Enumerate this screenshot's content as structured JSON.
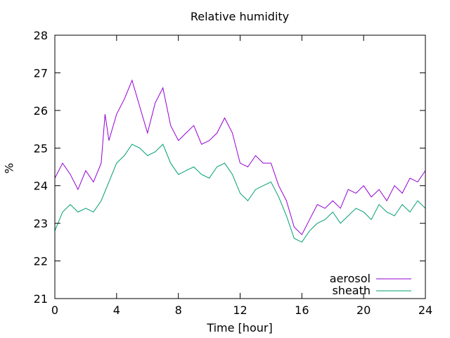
{
  "chart_data": {
    "type": "line",
    "title": "Relative humidity",
    "xlabel": "Time [hour]",
    "ylabel": "%",
    "xlim": [
      0,
      24
    ],
    "ylim": [
      21,
      28
    ],
    "xticks": [
      0,
      4,
      8,
      12,
      16,
      20,
      24
    ],
    "yticks": [
      21,
      22,
      23,
      24,
      25,
      26,
      27,
      28
    ],
    "grid": false,
    "legend_position": "bottom-right",
    "series": [
      {
        "name": "aerosol",
        "color": "#9400d3",
        "x": [
          0,
          0.5,
          1,
          1.5,
          2,
          2.5,
          3,
          3.25,
          3.5,
          4,
          4.5,
          5,
          5.5,
          6,
          6.5,
          7,
          7.5,
          8,
          8.5,
          9,
          9.5,
          10,
          10.5,
          11,
          11.5,
          12,
          12.5,
          13,
          13.5,
          14,
          14.5,
          15,
          15.5,
          16,
          16.5,
          17,
          17.5,
          18,
          18.5,
          19,
          19.5,
          20,
          20.5,
          21,
          21.5,
          22,
          22.5,
          23,
          23.5,
          24
        ],
        "y": [
          24.2,
          24.6,
          24.3,
          23.9,
          24.4,
          24.1,
          24.6,
          25.9,
          25.2,
          25.9,
          26.3,
          26.8,
          26.1,
          25.4,
          26.2,
          26.6,
          25.6,
          25.2,
          25.4,
          25.6,
          25.1,
          25.2,
          25.4,
          25.8,
          25.4,
          24.6,
          24.5,
          24.8,
          24.6,
          24.6,
          24.0,
          23.6,
          22.9,
          22.7,
          23.1,
          23.5,
          23.4,
          23.6,
          23.4,
          23.9,
          23.8,
          24.0,
          23.7,
          23.9,
          23.6,
          24.0,
          23.8,
          24.2,
          24.1,
          24.4
        ]
      },
      {
        "name": "sheath",
        "color": "#009e73",
        "x": [
          0,
          0.5,
          1,
          1.5,
          2,
          2.5,
          3,
          3.5,
          4,
          4.5,
          5,
          5.5,
          6,
          6.5,
          7,
          7.5,
          8,
          8.5,
          9,
          9.5,
          10,
          10.5,
          11,
          11.5,
          12,
          12.5,
          13,
          13.5,
          14,
          14.5,
          15,
          15.5,
          16,
          16.5,
          17,
          17.5,
          18,
          18.5,
          19,
          19.5,
          20,
          20.5,
          21,
          21.5,
          22,
          22.5,
          23,
          23.5,
          24
        ],
        "y": [
          22.8,
          23.3,
          23.5,
          23.3,
          23.4,
          23.3,
          23.6,
          24.1,
          24.6,
          24.8,
          25.1,
          25.0,
          24.8,
          24.9,
          25.1,
          24.6,
          24.3,
          24.4,
          24.5,
          24.3,
          24.2,
          24.5,
          24.6,
          24.3,
          23.8,
          23.6,
          23.9,
          24.0,
          24.1,
          23.7,
          23.2,
          22.6,
          22.5,
          22.8,
          23.0,
          23.1,
          23.3,
          23.0,
          23.2,
          23.4,
          23.3,
          23.1,
          23.5,
          23.3,
          23.2,
          23.5,
          23.3,
          23.6,
          23.4
        ]
      }
    ]
  }
}
